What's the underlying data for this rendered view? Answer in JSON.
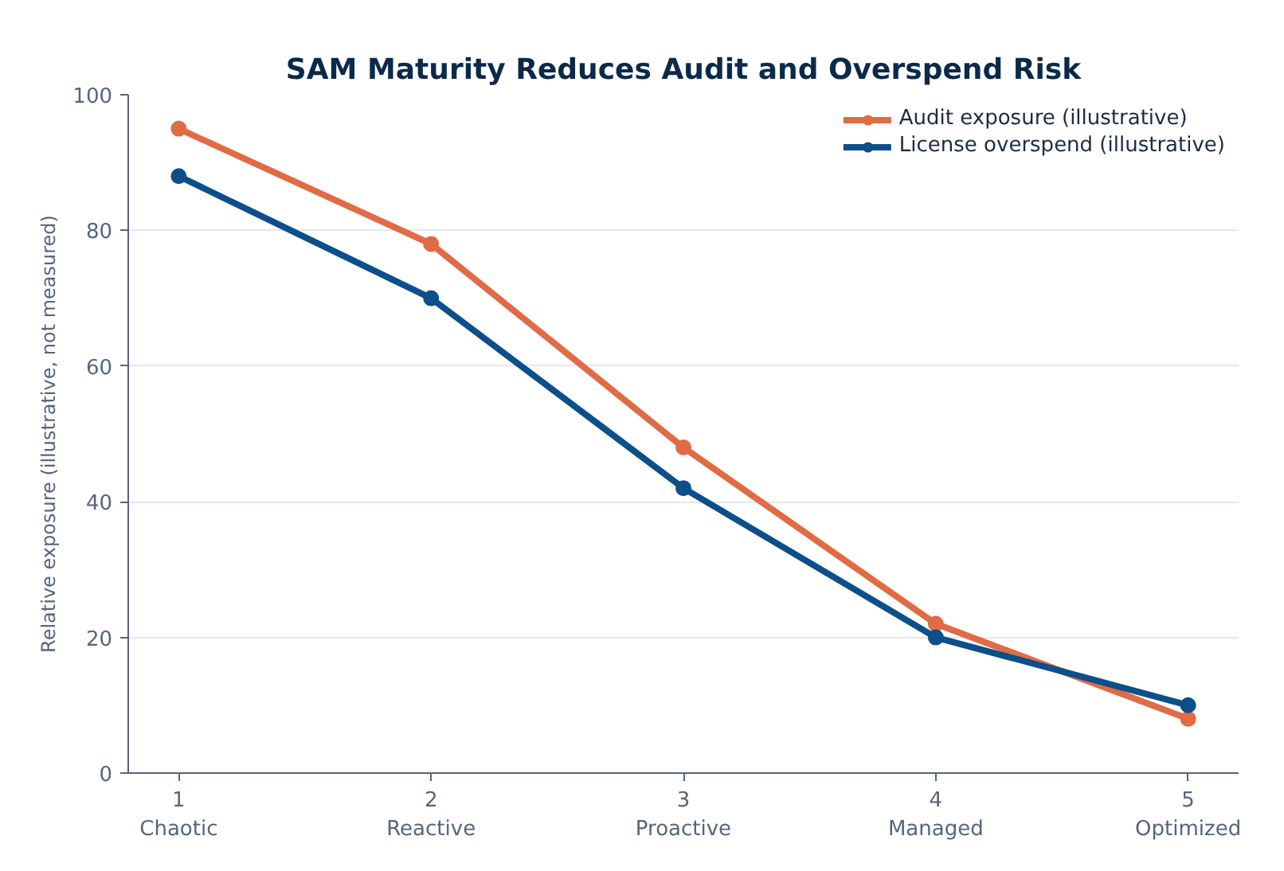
{
  "chart_data": {
    "type": "line",
    "title": "SAM Maturity Reduces Audit and Overspend Risk",
    "ylabel": "Relative exposure (illustrative, not measured)",
    "x": [
      1,
      2,
      3,
      4,
      5
    ],
    "xlim": [
      0.8,
      5.2
    ],
    "xticks": [
      {
        "value": 1,
        "label": "1\nChaotic"
      },
      {
        "value": 2,
        "label": "2\nReactive"
      },
      {
        "value": 3,
        "label": "3\nProactive"
      },
      {
        "value": 4,
        "label": "4\nManaged"
      },
      {
        "value": 5,
        "label": "5\nOptimized"
      }
    ],
    "ylim": [
      0,
      100
    ],
    "yticks": [
      0,
      20,
      40,
      60,
      80,
      100
    ],
    "grid": "y",
    "legend": "top right",
    "marker": "circle",
    "line_style": "solid",
    "series": [
      {
        "name": "Audit exposure (illustrative)",
        "color": "#e06b44",
        "values": [
          95,
          78,
          48,
          22,
          8
        ]
      },
      {
        "name": "License overspend (illustrative)",
        "color": "#0c4f8a",
        "values": [
          88,
          70,
          42,
          20,
          10
        ]
      }
    ]
  }
}
